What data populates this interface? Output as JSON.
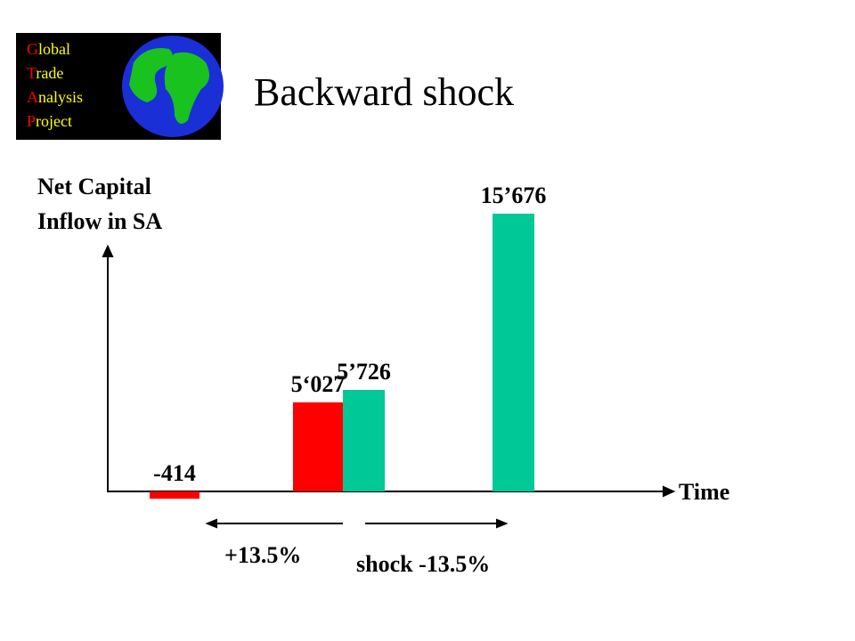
{
  "logo": [
    "Global",
    "Trade",
    "Analysis",
    "Project"
  ],
  "chart_data": {
    "type": "bar",
    "title": "Backward shock",
    "y_label": [
      "Net Capital",
      "Inflow in SA"
    ],
    "x_label": "Time",
    "categories": [
      null,
      null,
      null,
      null
    ],
    "values": [
      -414,
      5027,
      5726,
      15676
    ],
    "value_labels": [
      "-414",
      "5‘027",
      "5’726",
      "15’676"
    ],
    "colors": [
      "#ff0000",
      "#ff0000",
      "#00c896",
      "#00c896"
    ],
    "annotations": [
      "+13.5%",
      "shock -13.5%"
    ]
  }
}
